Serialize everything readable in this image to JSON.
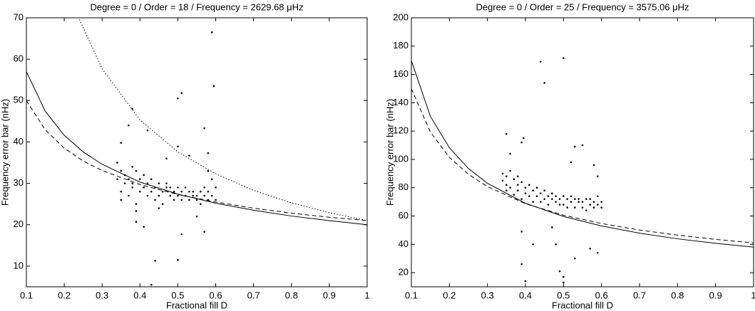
{
  "chart_data": [
    {
      "type": "scatter",
      "title": "Degree = 0 / Order = 18 / Frequency = 2629.68 μHz",
      "x_label": "Fractional fill D",
      "y_label": "Frequency error bar (nHz)",
      "xlim": [
        0.1,
        1
      ],
      "xticks": [
        0.1,
        0.2,
        0.3,
        0.4,
        0.5,
        0.6,
        0.7,
        0.8,
        0.9,
        1
      ],
      "ylim": [
        5,
        70
      ],
      "yticks": [
        10,
        20,
        30,
        40,
        50,
        60,
        70
      ],
      "series": [
        {
          "style": "dots",
          "color": "#000000",
          "x": [
            0.34,
            0.34,
            0.35,
            0.35,
            0.35,
            0.36,
            0.36,
            0.37,
            0.37,
            0.38,
            0.38,
            0.38,
            0.39,
            0.39,
            0.4,
            0.4,
            0.41,
            0.41,
            0.42,
            0.42,
            0.43,
            0.43,
            0.44,
            0.44,
            0.45,
            0.45,
            0.46,
            0.46,
            0.47,
            0.47,
            0.48,
            0.48,
            0.49,
            0.49,
            0.5,
            0.5,
            0.51,
            0.51,
            0.52,
            0.52,
            0.53,
            0.53,
            0.54,
            0.54,
            0.55,
            0.55,
            0.56,
            0.56,
            0.57,
            0.57,
            0.58,
            0.58,
            0.59,
            0.59,
            0.6,
            0.6,
            0.59,
            0.595,
            0.51,
            0.5,
            0.38,
            0.37,
            0.42,
            0.57,
            0.58,
            0.35,
            0.44,
            0.5,
            0.43,
            0.41,
            0.39,
            0.57,
            0.51,
            0.53,
            0.5,
            0.47,
            0.45,
            0.55,
            0.39,
            0.58
          ],
          "values": [
            35,
            31,
            33,
            28,
            26,
            32,
            30,
            31,
            27,
            34,
            29,
            30,
            33,
            25,
            31,
            28,
            32,
            29,
            30,
            27,
            31,
            28,
            29,
            26,
            30,
            27,
            28,
            25,
            30,
            29,
            27,
            29,
            26,
            28,
            29,
            27,
            28,
            26,
            27,
            29,
            28,
            26,
            27,
            28,
            26,
            27,
            28,
            25,
            27,
            29,
            26,
            28,
            27,
            31,
            26,
            29,
            66.5,
            53.5,
            51.8,
            50.5,
            48,
            44,
            42.8,
            43.3,
            37.3,
            39.8,
            11.3,
            11.5,
            5.5,
            19.5,
            20.7,
            18.3,
            17.7,
            36.7,
            38.9,
            36,
            24,
            22,
            23.3,
            33
          ]
        },
        {
          "style": "solid",
          "color": "#000000",
          "x": [
            0.1,
            0.15,
            0.2,
            0.25,
            0.3,
            0.4,
            0.5,
            0.6,
            0.7,
            0.8,
            0.9,
            1
          ],
          "values": [
            57.0,
            47.4,
            41.6,
            37.6,
            34.6,
            30.3,
            27.4,
            25.2,
            23.5,
            22.1,
            21.0,
            20
          ]
        },
        {
          "style": "dashed",
          "color": "#000000",
          "x": [
            0.1,
            0.15,
            0.2,
            0.25,
            0.3,
            0.4,
            0.5,
            0.6,
            0.7,
            0.8,
            0.9,
            1
          ],
          "values": [
            50.0,
            42.9,
            38.5,
            35.4,
            33.1,
            29.7,
            27.3,
            25.5,
            24.0,
            22.8,
            21.8,
            21
          ]
        },
        {
          "style": "dotted",
          "color": "#000000",
          "x": [
            0.24,
            0.3,
            0.4,
            0.5,
            0.6,
            0.7,
            0.8,
            0.9,
            1
          ],
          "values": [
            69.6,
            57.7,
            45.3,
            37.6,
            32.3,
            28.3,
            25.3,
            22.9,
            21
          ]
        }
      ]
    },
    {
      "type": "scatter",
      "title": "Degree = 0 / Order = 25 / Frequency = 3575.06 μHz",
      "x_label": "Fractional fill D",
      "y_label": "Frequency error bar (nHz)",
      "xlim": [
        0.1,
        1
      ],
      "xticks": [
        0.1,
        0.2,
        0.3,
        0.4,
        0.5,
        0.6,
        0.7,
        0.8,
        0.9,
        1
      ],
      "ylim": [
        10,
        200
      ],
      "yticks": [
        20,
        40,
        60,
        80,
        100,
        120,
        140,
        160,
        180,
        200
      ],
      "series": [
        {
          "style": "dots",
          "color": "#000000",
          "x": [
            0.34,
            0.34,
            0.35,
            0.35,
            0.35,
            0.36,
            0.36,
            0.37,
            0.37,
            0.38,
            0.38,
            0.38,
            0.39,
            0.39,
            0.4,
            0.4,
            0.41,
            0.41,
            0.42,
            0.42,
            0.43,
            0.43,
            0.44,
            0.44,
            0.45,
            0.45,
            0.46,
            0.46,
            0.47,
            0.47,
            0.48,
            0.48,
            0.49,
            0.49,
            0.5,
            0.5,
            0.51,
            0.51,
            0.52,
            0.52,
            0.53,
            0.53,
            0.54,
            0.54,
            0.55,
            0.55,
            0.56,
            0.56,
            0.57,
            0.57,
            0.58,
            0.58,
            0.59,
            0.59,
            0.6,
            0.6,
            0.44,
            0.5,
            0.45,
            0.35,
            0.395,
            0.39,
            0.53,
            0.55,
            0.39,
            0.4,
            0.49,
            0.5,
            0.5,
            0.48,
            0.42,
            0.53,
            0.57,
            0.59,
            0.39,
            0.47,
            0.36,
            0.52,
            0.58,
            0.59
          ],
          "values": [
            85,
            90,
            82,
            88,
            78,
            92,
            80,
            86,
            75,
            88,
            82,
            78,
            84,
            72,
            80,
            76,
            82,
            74,
            78,
            70,
            80,
            74,
            76,
            70,
            78,
            72,
            74,
            68,
            76,
            72,
            70,
            74,
            68,
            72,
            74,
            68,
            72,
            66,
            70,
            74,
            72,
            66,
            70,
            72,
            66,
            70,
            72,
            64,
            68,
            72,
            66,
            70,
            68,
            74,
            66,
            70,
            169,
            171.5,
            154,
            118,
            115,
            112,
            109,
            110,
            26,
            14,
            21,
            17,
            13,
            40,
            40,
            30,
            37,
            34,
            49,
            52,
            104,
            98,
            96,
            88
          ]
        },
        {
          "style": "solid",
          "color": "#000000",
          "x": [
            0.1,
            0.15,
            0.2,
            0.25,
            0.3,
            0.4,
            0.5,
            0.6,
            0.7,
            0.8,
            0.9,
            1
          ],
          "values": [
            169.7,
            130.4,
            108.2,
            93.6,
            83.1,
            69.0,
            59.7,
            53.0,
            47.9,
            43.9,
            40.7,
            38
          ]
        },
        {
          "style": "dashed",
          "color": "#000000",
          "x": [
            0.1,
            0.15,
            0.2,
            0.25,
            0.3,
            0.4,
            0.5,
            0.6,
            0.7,
            0.8,
            0.9,
            1
          ],
          "values": [
            149.9,
            119.3,
            101.4,
            89.5,
            80.8,
            68.7,
            60.6,
            54.7,
            50.1,
            46.5,
            43.5,
            41
          ]
        }
      ]
    }
  ]
}
